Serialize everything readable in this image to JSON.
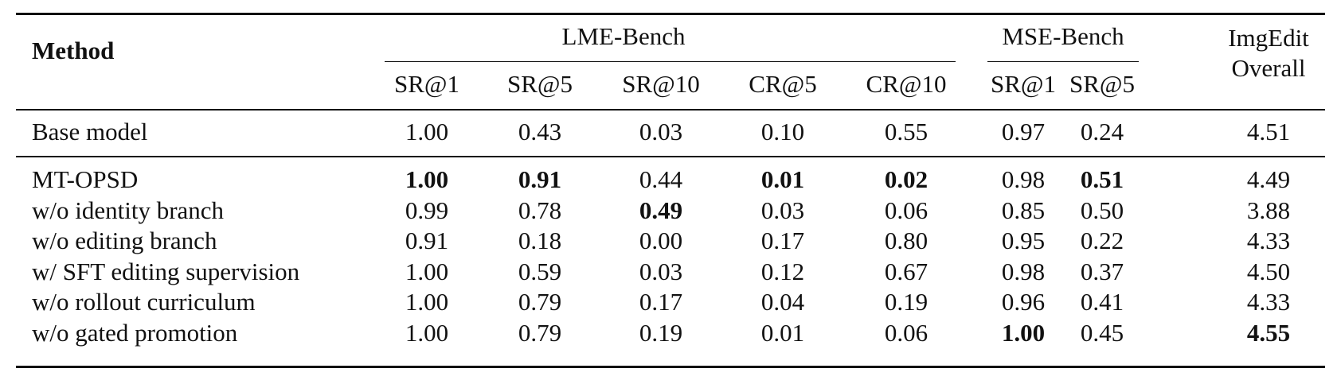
{
  "table": {
    "method_header": "Method",
    "groups": [
      {
        "label": "LME-Bench",
        "columns": [
          "SR@1",
          "SR@5",
          "SR@10",
          "CR@5",
          "CR@10"
        ]
      },
      {
        "label": "MSE-Bench",
        "columns": [
          "SR@1",
          "SR@5"
        ]
      },
      {
        "label_line1": "ImgEdit",
        "label_line2": "Overall"
      }
    ],
    "base": {
      "method": "Base model",
      "values": [
        "1.00",
        "0.43",
        "0.03",
        "0.10",
        "0.55",
        "0.97",
        "0.24",
        "4.51"
      ],
      "bold": []
    },
    "rows": [
      {
        "method": "MT-OPSD",
        "values": [
          "1.00",
          "0.91",
          "0.44",
          "0.01",
          "0.02",
          "0.98",
          "0.51",
          "4.49"
        ],
        "bold": [
          0,
          1,
          3,
          4,
          6
        ]
      },
      {
        "method": "w/o identity branch",
        "values": [
          "0.99",
          "0.78",
          "0.49",
          "0.03",
          "0.06",
          "0.85",
          "0.50",
          "3.88"
        ],
        "bold": [
          2
        ]
      },
      {
        "method": "w/o editing branch",
        "values": [
          "0.91",
          "0.18",
          "0.00",
          "0.17",
          "0.80",
          "0.95",
          "0.22",
          "4.33"
        ],
        "bold": []
      },
      {
        "method": "w/ SFT editing supervision",
        "values": [
          "1.00",
          "0.59",
          "0.03",
          "0.12",
          "0.67",
          "0.98",
          "0.37",
          "4.50"
        ],
        "bold": []
      },
      {
        "method": "w/o rollout curriculum",
        "values": [
          "1.00",
          "0.79",
          "0.17",
          "0.04",
          "0.19",
          "0.96",
          "0.41",
          "4.33"
        ],
        "bold": []
      },
      {
        "method": "w/o gated promotion",
        "values": [
          "1.00",
          "0.79",
          "0.19",
          "0.01",
          "0.06",
          "1.00",
          "0.45",
          "4.55"
        ],
        "bold": [
          5,
          7
        ]
      }
    ]
  }
}
